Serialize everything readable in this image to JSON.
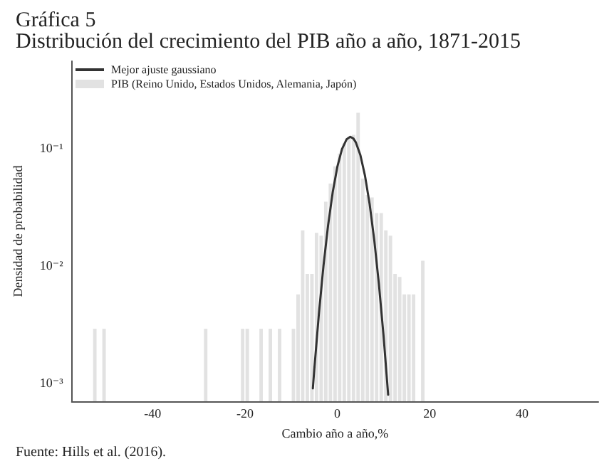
{
  "chart_data": {
    "type": "histogram",
    "title": "Gráfica 5",
    "subtitle": "Distribución del crecimiento del PIB año a año, 1871-2015",
    "xlabel": "Cambio año a año,%",
    "ylabel": "Densidad de probabilidad",
    "annotations": [
      "Fuente: Hills et al. (2016)."
    ],
    "series": [
      {
        "type": "line",
        "name": "Mejor ajuste gaussiano",
        "color": "#333333",
        "marker": "none",
        "line_style": "solid",
        "x": [
          -5.3,
          -5,
          -4,
          -3,
          -2,
          -1,
          0,
          1,
          2,
          2.8,
          3.5,
          4,
          5,
          6,
          7,
          8,
          9,
          10,
          11
        ],
        "values": [
          0.0009,
          0.00129,
          0.00386,
          0.00997,
          0.0221,
          0.0422,
          0.0694,
          0.098,
          0.119,
          0.125,
          0.1205,
          0.112,
          0.0869,
          0.0579,
          0.0332,
          0.0164,
          0.00695,
          0.00254,
          0.000796
        ]
      },
      {
        "name": "PIB (Reino Unido, Estados Unidos, Alemania, Japón)",
        "color": "#e2e2e2",
        "bins": [
          -53,
          -52,
          -51,
          -50,
          -49,
          -48,
          -47,
          -46,
          -45,
          -44,
          -43,
          -42,
          -41,
          -40,
          -39,
          -38,
          -37,
          -36,
          -35,
          -34,
          -33,
          -32,
          -31,
          -30,
          -29,
          -28,
          -27,
          -26,
          -25,
          -24,
          -23,
          -22,
          -21,
          -20,
          -19,
          -18,
          -17,
          -16,
          -15,
          -14,
          -13,
          -12,
          -11,
          -10,
          -9,
          -8,
          -7,
          -6,
          -5,
          -4,
          -3,
          -2,
          -1,
          0,
          1,
          2,
          3,
          4,
          5,
          6,
          7,
          8,
          9,
          10,
          11,
          12,
          13,
          14,
          15,
          16,
          17,
          18,
          19
        ],
        "values": [
          0.0029,
          null,
          0.0029,
          null,
          null,
          null,
          null,
          null,
          null,
          null,
          null,
          null,
          null,
          null,
          null,
          null,
          null,
          null,
          null,
          null,
          null,
          null,
          null,
          null,
          0.0029,
          null,
          null,
          null,
          null,
          null,
          null,
          null,
          0.0029,
          0.0029,
          null,
          null,
          0.0029,
          null,
          0.0029,
          null,
          0.0029,
          null,
          null,
          0.0029,
          0.0057,
          0.02,
          0.0085,
          0.0085,
          0.019,
          0.018,
          0.035,
          0.05,
          0.07,
          0.09,
          0.11,
          0.12,
          0.13,
          0.2,
          0.055,
          0.04,
          0.038,
          0.028,
          0.028,
          0.02,
          0.018,
          0.0085,
          0.008,
          0.0057,
          0.0057,
          0.0057,
          null,
          0.011
        ]
      }
    ],
    "xlim": [
      -57.5,
      56.5
    ],
    "xticks": [
      -40,
      -20,
      0,
      20,
      40
    ],
    "ylim": [
      0.0007,
      0.55
    ],
    "yticks": [
      {
        "value": 0.001,
        "label": "10⁻³"
      },
      {
        "value": 0.01,
        "label": "10⁻²"
      },
      {
        "value": 0.1,
        "label": "10⁻¹"
      }
    ],
    "log": "y",
    "grid": false,
    "legend": "top left"
  }
}
